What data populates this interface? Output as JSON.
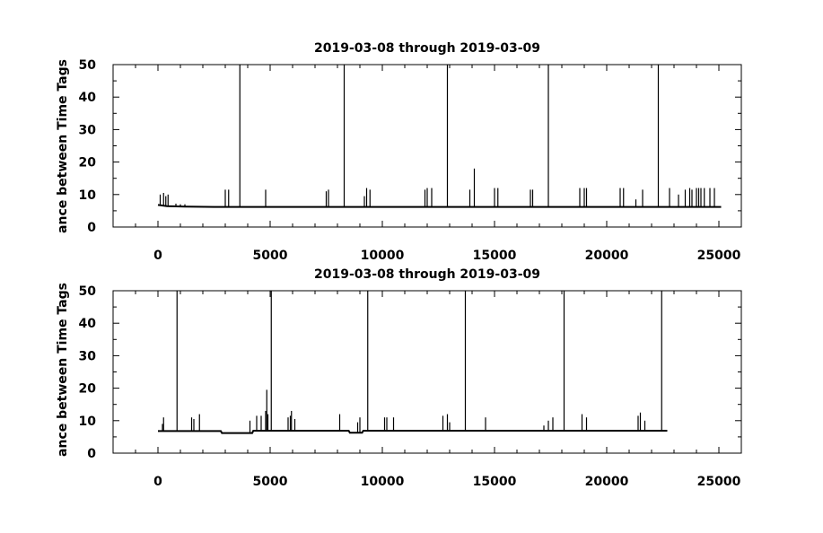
{
  "chart_data": [
    {
      "type": "line",
      "title": "2019-03-08 through 2019-03-09",
      "ylabel": "ance between Time Tags",
      "xlabel": "",
      "xlim": [
        -2000,
        26000
      ],
      "ylim": [
        0,
        50
      ],
      "xticks": [
        0,
        5000,
        10000,
        15000,
        20000,
        25000
      ],
      "xtick_labels": [
        "0",
        "5000",
        "10000",
        "15000",
        "20000",
        "25000"
      ],
      "yticks": [
        0,
        10,
        20,
        30,
        40,
        50
      ],
      "ytick_labels": [
        "0",
        "10",
        "20",
        "30",
        "40",
        "50"
      ],
      "series": [
        {
          "baseline": [
            [
              0,
              6.8
            ],
            [
              400,
              6.4
            ],
            [
              1200,
              6.3
            ],
            [
              2500,
              6.2
            ],
            [
              25100,
              6.2
            ]
          ],
          "spikes": [
            [
              100,
              10
            ],
            [
              250,
              10.5
            ],
            [
              350,
              9.5
            ],
            [
              450,
              10
            ],
            [
              800,
              7.2
            ],
            [
              1000,
              7
            ],
            [
              1200,
              7
            ],
            [
              3000,
              11.5
            ],
            [
              3150,
              11.5
            ],
            [
              3650,
              50
            ],
            [
              4800,
              11.5
            ],
            [
              7500,
              11
            ],
            [
              7600,
              11.5
            ],
            [
              8300,
              50
            ],
            [
              9200,
              9.5
            ],
            [
              9300,
              12
            ],
            [
              9450,
              11.5
            ],
            [
              11900,
              11.5
            ],
            [
              12000,
              12
            ],
            [
              12200,
              12
            ],
            [
              12900,
              50
            ],
            [
              13900,
              11.5
            ],
            [
              14100,
              18
            ],
            [
              15000,
              12
            ],
            [
              15150,
              12
            ],
            [
              16600,
              11.5
            ],
            [
              16700,
              11.5
            ],
            [
              17400,
              50
            ],
            [
              18800,
              12
            ],
            [
              19000,
              12
            ],
            [
              19100,
              12
            ],
            [
              20600,
              12
            ],
            [
              20750,
              12
            ],
            [
              21300,
              8.5
            ],
            [
              21600,
              11.5
            ],
            [
              22300,
              50
            ],
            [
              22800,
              12
            ],
            [
              23200,
              10
            ],
            [
              23500,
              11.5
            ],
            [
              23700,
              12
            ],
            [
              23800,
              11.5
            ],
            [
              24000,
              12
            ],
            [
              24100,
              12
            ],
            [
              24200,
              12
            ],
            [
              24350,
              12
            ],
            [
              24600,
              12
            ],
            [
              24800,
              12
            ]
          ]
        }
      ]
    },
    {
      "type": "line",
      "title": "2019-03-08 through 2019-03-09",
      "ylabel": "ance between Time Tags",
      "xlabel": "",
      "xlim": [
        -2000,
        26000
      ],
      "ylim": [
        0,
        50
      ],
      "xticks": [
        0,
        5000,
        10000,
        15000,
        20000,
        25000
      ],
      "xtick_labels": [
        "0",
        "5000",
        "10000",
        "15000",
        "20000",
        "25000"
      ],
      "yticks": [
        0,
        10,
        20,
        30,
        40,
        50
      ],
      "ytick_labels": [
        "0",
        "10",
        "20",
        "30",
        "40",
        "50"
      ],
      "series": [
        {
          "baseline": [
            [
              0,
              6.8
            ],
            [
              2800,
              6.8
            ],
            [
              2850,
              6.2
            ],
            [
              4200,
              6.2
            ],
            [
              4250,
              6.9
            ],
            [
              8500,
              6.9
            ],
            [
              8550,
              6.3
            ],
            [
              9100,
              6.3
            ],
            [
              9150,
              6.9
            ],
            [
              22700,
              6.9
            ]
          ],
          "spikes": [
            [
              200,
              9
            ],
            [
              250,
              11
            ],
            [
              850,
              50
            ],
            [
              1500,
              11
            ],
            [
              1600,
              10.5
            ],
            [
              1850,
              12
            ],
            [
              4100,
              10
            ],
            [
              4400,
              11.5
            ],
            [
              4600,
              11.5
            ],
            [
              4800,
              13
            ],
            [
              4850,
              19.5
            ],
            [
              4900,
              12
            ],
            [
              5050,
              50
            ],
            [
              5800,
              11
            ],
            [
              5900,
              11.5
            ],
            [
              5950,
              13
            ],
            [
              6100,
              10.5
            ],
            [
              8100,
              12
            ],
            [
              8900,
              9.5
            ],
            [
              9000,
              11
            ],
            [
              9350,
              50
            ],
            [
              10100,
              11
            ],
            [
              10200,
              11
            ],
            [
              10500,
              11
            ],
            [
              12700,
              11.5
            ],
            [
              12900,
              12
            ],
            [
              13000,
              9.5
            ],
            [
              13700,
              50
            ],
            [
              14600,
              11
            ],
            [
              17200,
              8.5
            ],
            [
              17400,
              10
            ],
            [
              17600,
              11
            ],
            [
              18100,
              50
            ],
            [
              18900,
              12
            ],
            [
              19100,
              11
            ],
            [
              21400,
              11.5
            ],
            [
              21500,
              12.5
            ],
            [
              21700,
              10
            ],
            [
              22450,
              50
            ]
          ]
        }
      ]
    }
  ]
}
